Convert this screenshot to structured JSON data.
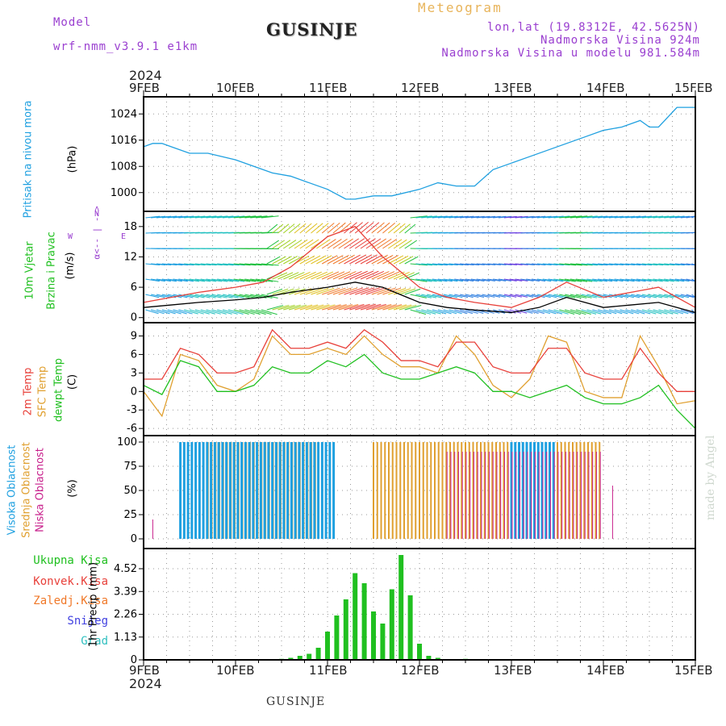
{
  "header": {
    "model_label": "Model",
    "model_name": "wrf-nmm_v3.9.1 e1km",
    "title": "GUSINJE",
    "chart_kind": "Meteogram",
    "lonlat": "lon,lat (19.8312E, 42.5625N)",
    "elevation": "Nadmorska Visina 924m",
    "elevation_model": "Nadmorska Visina u modelu 981.584m"
  },
  "footer": {
    "station": "GUSINJE",
    "credit": "made by Angel"
  },
  "time_axis": {
    "year": "2024",
    "labels": [
      "9FEB",
      "10FEB",
      "11FEB",
      "12FEB",
      "13FEB",
      "14FEB",
      "15FEB"
    ]
  },
  "panels": {
    "pressure": {
      "label": "Pritisak na nivou mora",
      "unit": "(hPa)",
      "color": "#1fa0e0",
      "ticks": [
        "1000",
        "1008",
        "1016",
        "1024"
      ]
    },
    "wind": {
      "label1": "10m Vjetar",
      "label2": "Brzina i Pravac",
      "unit": "(m/s)",
      "ticks": [
        "0",
        "6",
        "12",
        "18"
      ],
      "compass": {
        "n": "N",
        "w": "W",
        "e": "E",
        "s": "S"
      }
    },
    "temp": {
      "labels": [
        "2m Temp",
        "SFC Temp",
        "dewpt Temp"
      ],
      "unit": "(C)",
      "ticks": [
        "-6",
        "-3",
        "0",
        "3",
        "6",
        "9"
      ]
    },
    "cloud": {
      "labels": [
        "Visoka Oblacnost",
        "Srednja Oblacnost",
        "Niska Oblacnost"
      ],
      "unit": "(%)",
      "ticks": [
        "0",
        "25",
        "50",
        "75",
        "100"
      ]
    },
    "precip": {
      "legend": [
        "Ukupna Kisa",
        "Konvek.Kisa",
        "Zaledj.Kisa",
        "Snijeg",
        "Grad"
      ],
      "unit": "1hr Precip (mm)",
      "ticks": [
        "0",
        "1.13",
        "2.26",
        "3.39",
        "4.52"
      ]
    }
  },
  "colors": {
    "pressure": "#1fa0e0",
    "t2m": "#e8403a",
    "sfc": "#e0a030",
    "dew": "#20c020",
    "high_cloud": "#1fa0e0",
    "mid_cloud": "#e0a030",
    "low_cloud": "#c8208c",
    "rain": "#20c020",
    "conv": "#e8403a",
    "frz": "#f07828",
    "snow": "#4040e0",
    "hail": "#30c0c0"
  },
  "chart_data": {
    "type": "line",
    "x_unit": "days since 9FEB 00Z",
    "pressure": {
      "ylim": [
        996,
        1028
      ],
      "x": [
        0,
        0.1,
        0.2,
        0.3,
        0.5,
        0.7,
        1.0,
        1.2,
        1.4,
        1.6,
        1.8,
        2.0,
        2.2,
        2.3,
        2.5,
        2.7,
        3.0,
        3.2,
        3.4,
        3.6,
        3.8,
        4.0,
        4.2,
        4.4,
        4.6,
        4.8,
        5.0,
        5.2,
        5.4,
        5.5,
        5.6,
        5.7,
        5.8,
        6.0
      ],
      "y": [
        1014,
        1015,
        1015,
        1014,
        1012,
        1012,
        1010,
        1008,
        1006,
        1005,
        1003,
        1001,
        998,
        998,
        999,
        999,
        1001,
        1003,
        1002,
        1002,
        1007,
        1009,
        1011,
        1013,
        1015,
        1017,
        1019,
        1020,
        1022,
        1020,
        1020,
        1023,
        1026,
        1026
      ]
    },
    "wind": {
      "ylim": [
        -1,
        21
      ],
      "x": [
        0,
        0.3,
        0.6,
        1.0,
        1.3,
        1.6,
        2.0,
        2.3,
        2.6,
        3.0,
        3.3,
        3.6,
        4.0,
        4.3,
        4.6,
        5.0,
        5.3,
        5.6,
        6.0
      ],
      "speed": [
        2,
        2.5,
        3,
        3.5,
        4,
        5,
        6,
        7,
        6,
        3,
        2,
        1.5,
        1,
        2,
        4,
        2,
        2.5,
        3,
        1
      ],
      "gust": [
        3,
        4,
        5,
        6,
        7,
        10,
        16,
        18,
        12,
        6,
        4,
        3,
        2,
        4,
        7,
        4,
        5,
        6,
        2
      ]
    },
    "temperature": {
      "ylim": [
        -6.5,
        10.5
      ],
      "x": [
        0,
        0.2,
        0.4,
        0.6,
        0.8,
        1.0,
        1.2,
        1.4,
        1.6,
        1.8,
        2.0,
        2.2,
        2.4,
        2.6,
        2.8,
        3.0,
        3.2,
        3.4,
        3.6,
        3.8,
        4.0,
        4.2,
        4.4,
        4.6,
        4.8,
        5.0,
        5.2,
        5.4,
        5.6,
        5.8,
        6.0
      ],
      "t2m": [
        2,
        2,
        7,
        6,
        3,
        3,
        4,
        10,
        7,
        7,
        8,
        7,
        10,
        8,
        5,
        5,
        4,
        8,
        8,
        4,
        3,
        3,
        7,
        7,
        3,
        2,
        2,
        7,
        3,
        0,
        0
      ],
      "sfc": [
        0,
        -4,
        6,
        5,
        1,
        0,
        2,
        9,
        6,
        6,
        7,
        6,
        9,
        6,
        4,
        4,
        3,
        9,
        6,
        1,
        -1,
        2,
        9,
        8,
        0,
        -1,
        -1,
        9,
        4,
        -2,
        -1.5
      ],
      "dewpt": [
        1,
        -0.5,
        5,
        4,
        0,
        0,
        1,
        4,
        3,
        3,
        5,
        4,
        6,
        3,
        2,
        2,
        3,
        4,
        3,
        0,
        0,
        -1,
        0,
        1,
        -1,
        -2,
        -2,
        -1,
        1,
        -3,
        -6
      ]
    },
    "cloud": {
      "ylim": [
        0,
        100
      ],
      "high": [
        {
          "from": 0.4,
          "to": 2.1,
          "value": 100
        },
        {
          "from": 4.0,
          "to": 4.5,
          "value": 100
        }
      ],
      "mid": [
        {
          "from": 0.7,
          "to": 1.9,
          "value": 100
        },
        {
          "from": 2.5,
          "to": 5.0,
          "value": 100
        }
      ],
      "low": [
        {
          "from": 3.3,
          "to": 5.0,
          "value": 90
        },
        {
          "from": 0.1,
          "to": 0.12,
          "value": 20
        },
        {
          "from": 5.1,
          "to": 5.12,
          "value": 55
        }
      ]
    },
    "precip": {
      "ylim": [
        0,
        5.2
      ],
      "x": [
        1.5,
        1.6,
        1.7,
        1.8,
        1.9,
        2.0,
        2.1,
        2.2,
        2.3,
        2.4,
        2.5,
        2.6,
        2.7,
        2.8,
        2.9,
        3.0,
        3.1,
        3.2,
        3.5
      ],
      "total": [
        0.05,
        0.1,
        0.2,
        0.3,
        0.6,
        1.4,
        2.2,
        3.0,
        4.3,
        3.8,
        2.4,
        1.8,
        3.5,
        5.2,
        3.2,
        0.8,
        0.2,
        0.1,
        0.05
      ]
    }
  }
}
